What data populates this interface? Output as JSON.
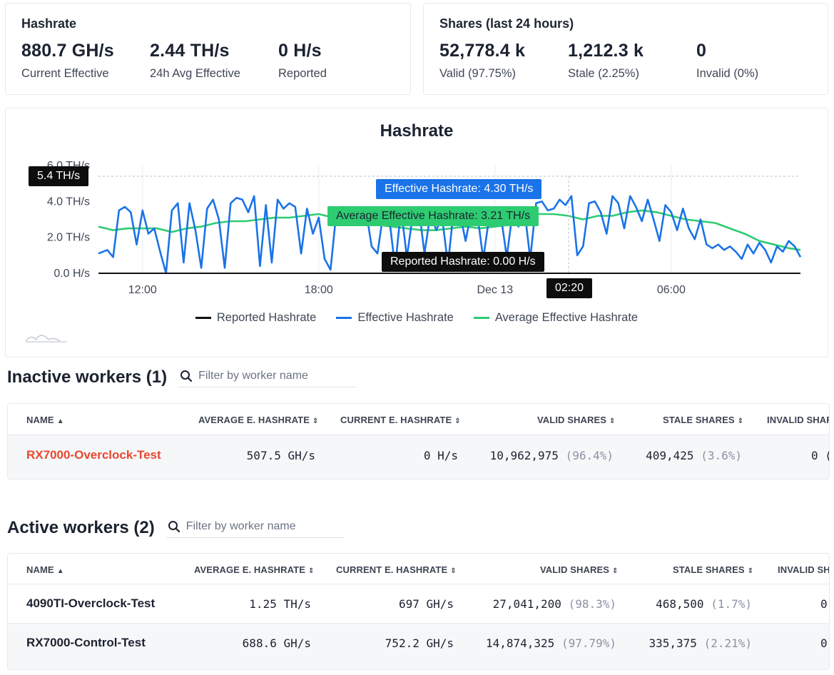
{
  "hashrate_card": {
    "title": "Hashrate",
    "stats": [
      {
        "value": "880.7 GH/s",
        "label": "Current Effective"
      },
      {
        "value": "2.44 TH/s",
        "label": "24h Avg Effective"
      },
      {
        "value": "0 H/s",
        "label": "Reported"
      }
    ]
  },
  "shares_card": {
    "title": "Shares (last 24 hours)",
    "stats": [
      {
        "value": "52,778.4 k",
        "label": "Valid (97.75%)"
      },
      {
        "value": "1,212.3 k",
        "label": "Stale (2.25%)"
      },
      {
        "value": "0",
        "label": "Invalid (0%)"
      }
    ]
  },
  "chart": {
    "title": "Hashrate",
    "crosshair_y_label": "5.4 TH/s",
    "crosshair_x_label": "02:20",
    "tooltip_effective": "Effective Hashrate: 4.30 TH/s",
    "tooltip_average": "Average Effective Hashrate: 3.21 TH/s",
    "tooltip_reported": "Reported Hashrate: 0.00 H/s",
    "legend": [
      {
        "name": "Reported Hashrate",
        "color": "#111111"
      },
      {
        "name": "Effective Hashrate",
        "color": "#1a73e8"
      },
      {
        "name": "Average Effective Hashrate",
        "color": "#2ecc71"
      }
    ]
  },
  "chart_data": {
    "type": "line",
    "title": "Hashrate",
    "ylim": [
      0,
      6
    ],
    "y_unit": "TH/s",
    "y_ticks": [
      {
        "v": 0,
        "label": "0.0 H/s"
      },
      {
        "v": 2,
        "label": "2.0 TH/s"
      },
      {
        "v": 4,
        "label": "4.0 TH/s"
      },
      {
        "v": 6,
        "label": "6.0 TH/s"
      }
    ],
    "x_range_hours": [
      10.5,
      34.4
    ],
    "x_ticks": [
      {
        "v": 12,
        "label": "12:00"
      },
      {
        "v": 18,
        "label": "18:00"
      },
      {
        "v": 24,
        "label": "Dec 13"
      },
      {
        "v": 30,
        "label": "06:00"
      }
    ],
    "grid": true,
    "legend_position": "bottom",
    "series": [
      {
        "name": "Reported Hashrate",
        "color": "#111111",
        "x": [
          10.5,
          34.4
        ],
        "y": [
          0,
          0
        ]
      },
      {
        "name": "Effective Hashrate",
        "color": "#1a73e8",
        "x": [
          10.5,
          10.8,
          11.0,
          11.2,
          11.4,
          11.6,
          11.8,
          12.0,
          12.2,
          12.4,
          12.6,
          12.8,
          13.0,
          13.2,
          13.4,
          13.6,
          13.8,
          14.0,
          14.2,
          14.4,
          14.6,
          14.8,
          15.0,
          15.2,
          15.4,
          15.6,
          15.8,
          16.0,
          16.2,
          16.4,
          16.6,
          16.8,
          17.0,
          17.2,
          17.4,
          17.6,
          17.8,
          18.0,
          18.2,
          18.4,
          18.6,
          18.8,
          19.0,
          19.2,
          19.4,
          19.6,
          19.8,
          20.0,
          20.2,
          20.4,
          20.6,
          20.8,
          21.0,
          21.2,
          21.4,
          21.6,
          21.8,
          22.0,
          22.2,
          22.4,
          22.6,
          22.8,
          23.0,
          23.2,
          23.4,
          23.6,
          23.8,
          24.0,
          24.2,
          24.4,
          24.6,
          24.8,
          25.0,
          25.2,
          25.4,
          25.6,
          25.8,
          26.0,
          26.2,
          26.4,
          26.6,
          26.8,
          27.0,
          27.2,
          27.4,
          27.6,
          27.8,
          28.0,
          28.2,
          28.4,
          28.6,
          28.8,
          29.0,
          29.2,
          29.4,
          29.6,
          29.8,
          30.0,
          30.2,
          30.4,
          30.6,
          30.8,
          31.0,
          31.2,
          31.4,
          31.6,
          31.8,
          32.0,
          32.2,
          32.4,
          32.6,
          32.8,
          33.0,
          33.2,
          33.4,
          33.6,
          33.8,
          34.0,
          34.2,
          34.4
        ],
        "y": [
          1.1,
          1.3,
          0.9,
          3.5,
          3.7,
          3.4,
          1.6,
          3.5,
          2.2,
          2.5,
          1.2,
          0.0,
          3.5,
          3.9,
          0.6,
          3.9,
          2.4,
          0.3,
          3.6,
          4.1,
          3.0,
          0.3,
          3.9,
          4.2,
          4.1,
          3.4,
          4.3,
          0.4,
          3.8,
          0.6,
          4.1,
          3.6,
          3.9,
          3.7,
          1.1,
          3.6,
          2.2,
          3.1,
          0.8,
          0.2,
          3.4,
          3.7,
          3.5,
          3.4,
          3.3,
          3.6,
          1.5,
          1.1,
          3.4,
          3.1,
          0.3,
          3.6,
          0.9,
          3.2,
          3.7,
          1.1,
          3.3,
          2.4,
          3.1,
          0.5,
          3.6,
          3.4,
          1.8,
          3.5,
          3.3,
          0.8,
          3.1,
          2.9,
          3.2,
          0.9,
          3.4,
          2.6,
          3.6,
          0.8,
          3.9,
          4.0,
          3.5,
          3.6,
          4.1,
          3.8,
          4.3,
          1.0,
          1.5,
          3.9,
          4.0,
          3.4,
          2.2,
          4.3,
          3.9,
          2.5,
          4.3,
          3.7,
          2.9,
          4.1,
          3.0,
          1.8,
          3.8,
          3.4,
          2.4,
          3.6,
          2.5,
          1.9,
          3.0,
          1.6,
          1.4,
          1.6,
          1.3,
          1.5,
          1.2,
          0.8,
          1.6,
          1.1,
          1.7,
          1.3,
          0.6,
          1.5,
          1.2,
          1.8,
          1.5,
          0.9
        ]
      },
      {
        "name": "Average Effective Hashrate",
        "color": "#2ecc71",
        "x": [
          10.5,
          11.0,
          11.5,
          12.0,
          12.5,
          13.0,
          13.5,
          14.0,
          14.5,
          15.0,
          15.5,
          16.0,
          16.5,
          17.0,
          17.5,
          18.0,
          18.5,
          19.0,
          19.5,
          20.0,
          20.5,
          21.0,
          21.5,
          22.0,
          22.5,
          23.0,
          23.5,
          24.0,
          24.5,
          25.0,
          25.5,
          26.0,
          26.5,
          27.0,
          27.5,
          28.0,
          28.5,
          29.0,
          29.5,
          30.0,
          30.5,
          31.0,
          31.5,
          32.0,
          32.5,
          33.0,
          33.5,
          34.0,
          34.4
        ],
        "y": [
          2.6,
          2.4,
          2.5,
          2.5,
          2.5,
          2.3,
          2.5,
          2.6,
          2.8,
          2.9,
          2.9,
          3.0,
          3.1,
          3.1,
          3.2,
          3.3,
          3.1,
          3.0,
          3.0,
          2.7,
          2.6,
          2.5,
          2.4,
          2.4,
          2.5,
          2.6,
          2.5,
          2.6,
          2.7,
          3.1,
          3.3,
          3.3,
          3.2,
          3.0,
          3.2,
          3.2,
          3.4,
          3.5,
          3.4,
          3.2,
          3.0,
          2.9,
          2.8,
          2.5,
          2.2,
          1.8,
          1.6,
          1.4,
          1.3
        ]
      }
    ]
  },
  "inactive_section": {
    "title": "Inactive workers (1)",
    "filter_placeholder": "Filter by worker name",
    "columns": [
      "NAME",
      "AVERAGE E. HASHRATE",
      "CURRENT E. HASHRATE",
      "VALID SHARES",
      "STALE SHARES",
      "INVALID SHAR"
    ],
    "rows": [
      {
        "name": "RX7000-Overclock-Test",
        "avg": "507.5 GH/s",
        "current": "0 H/s",
        "valid": "10,962,975",
        "valid_pct": "(96.4%)",
        "stale": "409,425",
        "stale_pct": "(3.6%)",
        "invalid": "0 ("
      }
    ]
  },
  "active_section": {
    "title": "Active workers (2)",
    "filter_placeholder": "Filter by worker name",
    "columns": [
      "NAME",
      "AVERAGE E. HASHRATE",
      "CURRENT E. HASHRATE",
      "VALID SHARES",
      "STALE SHARES",
      "INVALID SH"
    ],
    "rows": [
      {
        "name": "4090TI-Overclock-Test",
        "avg": "1.25 TH/s",
        "current": "697 GH/s",
        "valid": "27,041,200",
        "valid_pct": "(98.3%)",
        "stale": "468,500",
        "stale_pct": "(1.7%)",
        "invalid": "0"
      },
      {
        "name": "RX7000-Control-Test",
        "avg": "688.6 GH/s",
        "current": "752.2 GH/s",
        "valid": "14,874,325",
        "valid_pct": "(97.79%)",
        "stale": "335,375",
        "stale_pct": "(2.21%)",
        "invalid": "0"
      }
    ]
  }
}
